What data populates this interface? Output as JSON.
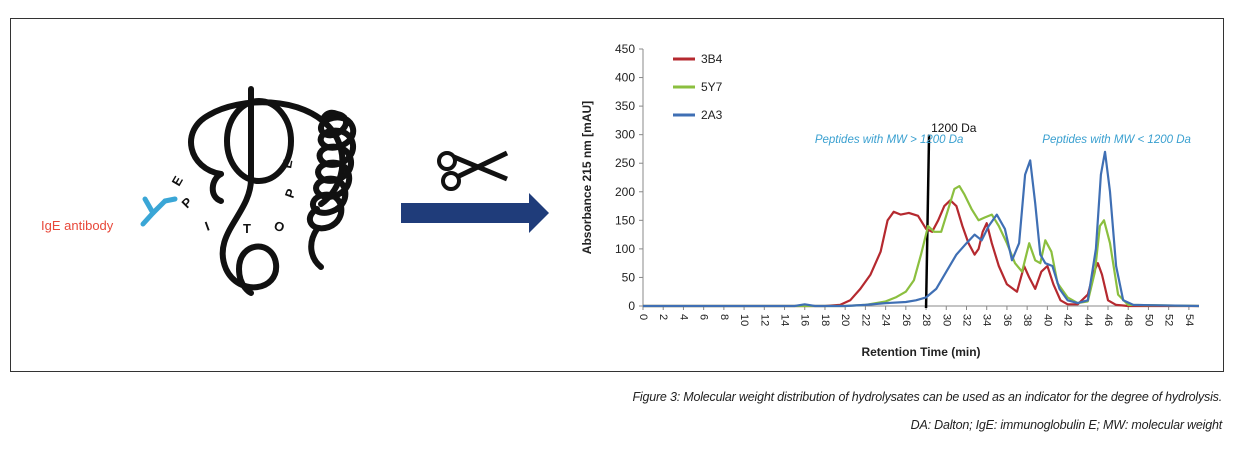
{
  "illustration": {
    "antibody_label": "IgE antibody",
    "epitope_letters": [
      "E",
      "P",
      "I",
      "T",
      "O",
      "P",
      "E"
    ],
    "scissors_icon": "scissors-icon",
    "arrow_icon": "arrow-right-icon",
    "colors": {
      "antibody": "#3aa6d6",
      "antibody_label": "#e8483a",
      "arrow": "#1f3c7a",
      "peptide": "#111111"
    }
  },
  "chart_data": {
    "type": "line",
    "title": "",
    "xlabel": "Retention Time (min)",
    "ylabel": "Absorbance 215 nm [mAU]",
    "xlim": [
      0,
      55
    ],
    "ylim": [
      0,
      450
    ],
    "xticks": [
      0,
      2,
      4,
      6,
      8,
      10,
      12,
      14,
      16,
      18,
      20,
      22,
      24,
      26,
      28,
      30,
      32,
      34,
      36,
      38,
      40,
      42,
      44,
      46,
      48,
      50,
      52,
      54
    ],
    "yticks": [
      0,
      50,
      100,
      150,
      200,
      250,
      300,
      350,
      400,
      450
    ],
    "grid": false,
    "legend": "top-left",
    "series": [
      {
        "name": "3B4",
        "color": "#b5292f",
        "x": [
          0,
          18,
          19.5,
          20.5,
          21.5,
          22.5,
          23.5,
          24.2,
          24.8,
          25.5,
          26.3,
          27.2,
          28,
          28.6,
          29.2,
          29.8,
          30.4,
          31,
          31.6,
          32.2,
          32.8,
          33.2,
          33.6,
          34,
          34.5,
          35.2,
          36,
          37,
          37.7,
          38.2,
          38.8,
          39.4,
          40,
          40.6,
          41.3,
          42,
          43,
          44,
          44.6,
          45,
          45.4,
          46,
          46.8,
          48,
          55
        ],
        "y": [
          0,
          0,
          2,
          10,
          30,
          55,
          95,
          150,
          165,
          160,
          163,
          158,
          135,
          130,
          150,
          175,
          185,
          175,
          140,
          110,
          90,
          100,
          130,
          145,
          110,
          70,
          38,
          25,
          70,
          50,
          30,
          60,
          70,
          38,
          10,
          3,
          3,
          20,
          60,
          75,
          55,
          10,
          2,
          0,
          0
        ]
      },
      {
        "name": "5Y7",
        "color": "#8bbf3f",
        "x": [
          0,
          20,
          22,
          24,
          25,
          26,
          26.8,
          27.5,
          28.2,
          28.8,
          29.5,
          30.2,
          30.8,
          31.3,
          31.8,
          32.5,
          33.2,
          33.8,
          34.5,
          35.2,
          36,
          36.8,
          37.5,
          38.2,
          38.8,
          39.3,
          39.8,
          40.4,
          41,
          42,
          43,
          44,
          44.7,
          45.2,
          45.6,
          46.2,
          47,
          48,
          55
        ],
        "y": [
          0,
          0,
          2,
          8,
          15,
          25,
          45,
          90,
          140,
          130,
          130,
          170,
          205,
          210,
          195,
          170,
          150,
          155,
          160,
          140,
          110,
          75,
          60,
          110,
          80,
          75,
          115,
          95,
          40,
          15,
          5,
          8,
          60,
          140,
          150,
          110,
          20,
          2,
          0
        ]
      },
      {
        "name": "2A3",
        "color": "#3f6fb4",
        "x": [
          0,
          15,
          16,
          17,
          20,
          22,
          24,
          26,
          27,
          28,
          29,
          30,
          31,
          32,
          32.8,
          33.5,
          34.2,
          35,
          35.8,
          36.5,
          37.2,
          37.8,
          38.3,
          38.8,
          39.3,
          39.8,
          40.5,
          41.2,
          42,
          43,
          44,
          44.8,
          45.3,
          45.7,
          46.2,
          46.8,
          47.5,
          48.5,
          55
        ],
        "y": [
          0,
          0,
          3,
          0,
          0,
          2,
          5,
          7,
          10,
          15,
          30,
          60,
          90,
          110,
          125,
          115,
          140,
          160,
          135,
          80,
          110,
          230,
          255,
          180,
          90,
          75,
          70,
          30,
          10,
          5,
          10,
          100,
          230,
          270,
          200,
          70,
          10,
          2,
          0
        ]
      }
    ],
    "annotations": [
      {
        "text": "1200 Da",
        "x": 28.5,
        "y": 305
      },
      {
        "text": "Peptides with MW > 1200 Da",
        "x": 17,
        "y": 285
      },
      {
        "text": "Peptides with MW < 1200 Da",
        "x": 39.5,
        "y": 285
      }
    ],
    "divider_x": 28
  },
  "captions": {
    "line1": "Figure 3: Molecular weight distribution of hydrolysates can be used as an indicator for the degree of hydrolysis.",
    "line2": "DA: Dalton; IgE: immunoglobulin E; MW: molecular weight"
  }
}
